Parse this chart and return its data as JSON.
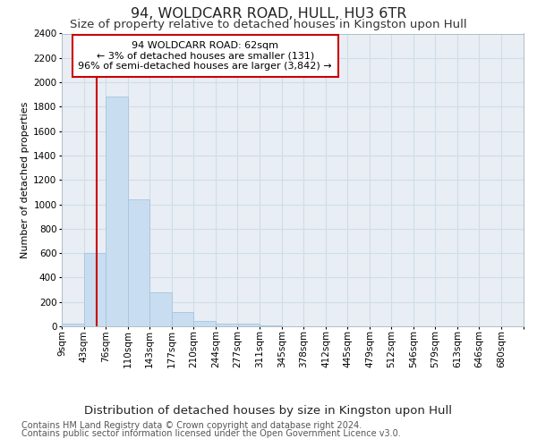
{
  "title1": "94, WOLDCARR ROAD, HULL, HU3 6TR",
  "title2": "Size of property relative to detached houses in Kingston upon Hull",
  "xlabel": "Distribution of detached houses by size in Kingston upon Hull",
  "ylabel": "Number of detached properties",
  "footer1": "Contains HM Land Registry data © Crown copyright and database right 2024.",
  "footer2": "Contains public sector information licensed under the Open Government Licence v3.0.",
  "annotation_title": "94 WOLDCARR ROAD: 62sqm",
  "annotation_line1": "← 3% of detached houses are smaller (131)",
  "annotation_line2": "96% of semi-detached houses are larger (3,842) →",
  "bar_color": "#c8ddf0",
  "bar_edge_color": "#a8c4de",
  "grid_color": "#d0dce8",
  "bg_color": "#e8eef4",
  "red_line_color": "#cc0000",
  "annotation_box_color": "#cc0000",
  "ylim": [
    0,
    2400
  ],
  "yticks": [
    0,
    200,
    400,
    600,
    800,
    1000,
    1200,
    1400,
    1600,
    1800,
    2000,
    2200,
    2400
  ],
  "bin_labels": [
    "9sqm",
    "43sqm",
    "76sqm",
    "110sqm",
    "143sqm",
    "177sqm",
    "210sqm",
    "244sqm",
    "277sqm",
    "311sqm",
    "345sqm",
    "378sqm",
    "412sqm",
    "445sqm",
    "479sqm",
    "512sqm",
    "546sqm",
    "579sqm",
    "613sqm",
    "646sqm",
    "680sqm"
  ],
  "bin_edges": [
    9,
    43,
    76,
    110,
    143,
    177,
    210,
    244,
    277,
    311,
    345,
    378,
    412,
    445,
    479,
    512,
    546,
    579,
    613,
    646,
    680
  ],
  "bin_width": 34,
  "bar_heights": [
    20,
    600,
    1880,
    1040,
    280,
    120,
    45,
    25,
    20,
    5,
    2,
    2,
    0,
    0,
    0,
    0,
    0,
    0,
    0,
    0
  ],
  "red_line_x": 62,
  "title1_fontsize": 11.5,
  "title2_fontsize": 9.5,
  "xlabel_fontsize": 9.5,
  "ylabel_fontsize": 8,
  "tick_fontsize": 7.5,
  "annot_fontsize": 8,
  "footer_fontsize": 7
}
